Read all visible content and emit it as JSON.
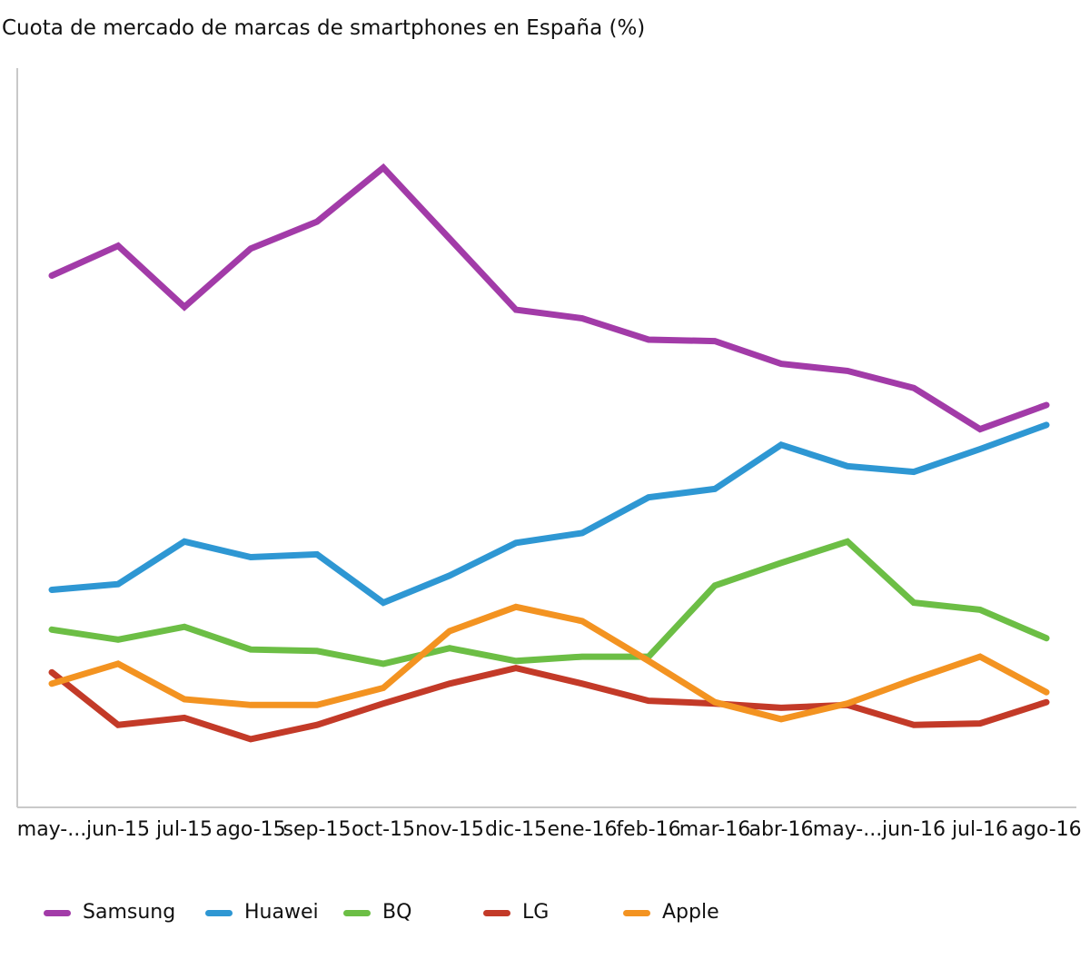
{
  "title": "Cuota de mercado de marcas de smartphones en España (%)",
  "chart_data": {
    "type": "line",
    "title": "Cuota de mercado de marcas de smartphones en España (%)",
    "categories": [
      "may-...",
      "jun-15",
      "jul-15",
      "ago-15",
      "sep-15",
      "oct-15",
      "nov-15",
      "dic-15",
      "ene-16",
      "feb-16",
      "mar-16",
      "abr-16",
      "may-...",
      "jun-16",
      "jul-16",
      "ago-16"
    ],
    "series": [
      {
        "name": "Samsung",
        "color": "#A23BA8",
        "values": [
          37.4,
          39.5,
          35.2,
          39.3,
          41.2,
          45.0,
          40.0,
          35.0,
          34.4,
          32.9,
          32.8,
          31.2,
          30.7,
          29.5,
          26.6,
          28.3
        ]
      },
      {
        "name": "Huawei",
        "color": "#2E97D3",
        "values": [
          15.3,
          15.7,
          18.7,
          17.6,
          17.8,
          14.4,
          16.3,
          18.6,
          19.3,
          21.8,
          22.4,
          25.5,
          24.0,
          23.6,
          25.2,
          26.9
        ]
      },
      {
        "name": "BQ",
        "color": "#6CBE45",
        "values": [
          12.5,
          11.8,
          12.7,
          11.1,
          11.0,
          10.1,
          11.2,
          10.3,
          10.6,
          10.6,
          15.6,
          17.2,
          18.7,
          14.4,
          13.9,
          11.9
        ]
      },
      {
        "name": "LG",
        "color": "#C33A28",
        "values": [
          9.5,
          5.8,
          6.3,
          4.8,
          5.8,
          7.3,
          8.7,
          9.8,
          8.7,
          7.5,
          7.3,
          7.0,
          7.2,
          5.8,
          5.9,
          7.4
        ]
      },
      {
        "name": "Apple",
        "color": "#F39321",
        "values": [
          8.7,
          10.1,
          7.6,
          7.2,
          7.2,
          8.4,
          12.4,
          14.1,
          13.1,
          10.3,
          7.4,
          6.2,
          7.3,
          9.0,
          10.6,
          8.1
        ]
      }
    ],
    "xlabel": "",
    "ylabel": "",
    "ylim": [
      0,
      52
    ],
    "grid": false,
    "y_axis_labels_shown": false,
    "legend_position": "bottom",
    "axis_color": "#c9c9c9",
    "tick_label_color": "#111111"
  }
}
